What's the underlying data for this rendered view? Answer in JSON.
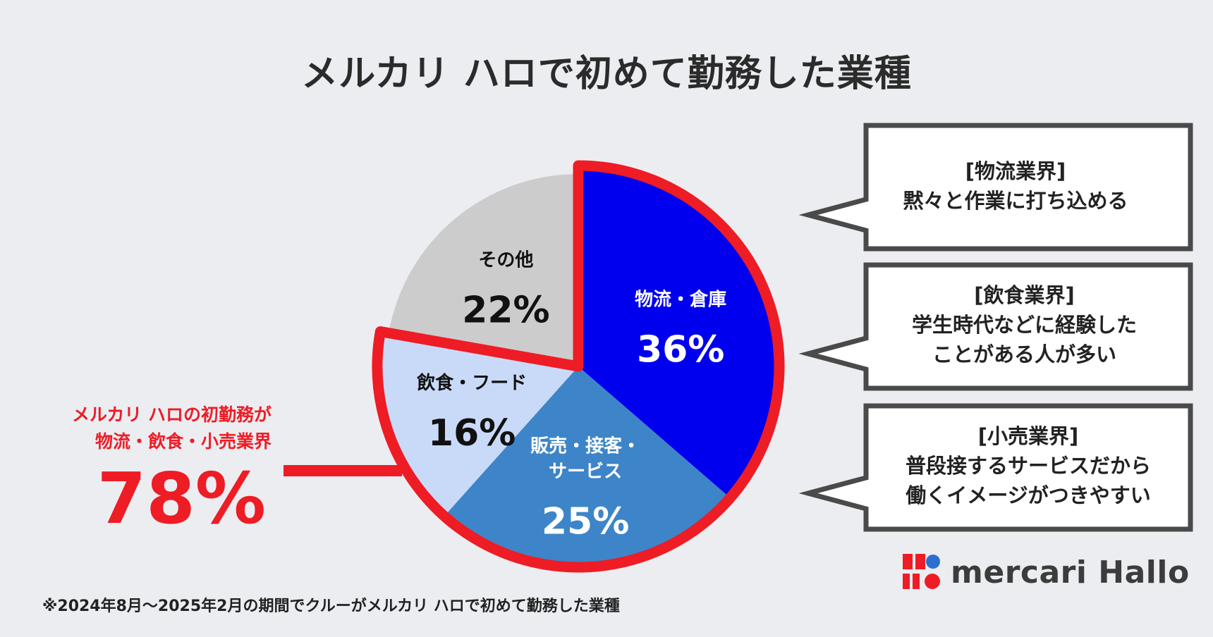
{
  "title": "メルカリ ハロで初めて勤務した業種",
  "chart_data": {
    "type": "pie",
    "title": "メルカリ ハロで初めて勤務した業種",
    "start_angle_deg": 0,
    "direction": "clockwise",
    "slices": [
      {
        "label": "物流・倉庫",
        "label_lines": [
          "物流・倉庫"
        ],
        "value": 36,
        "display": "36%",
        "color": "#0000ee",
        "text_color": "#ffffff",
        "highlighted": true
      },
      {
        "label": "販売・接客・サービス",
        "label_lines": [
          "販売・接客・",
          "サービス"
        ],
        "value": 25,
        "display": "25%",
        "color": "#3d85c8",
        "text_color": "#ffffff",
        "highlighted": true
      },
      {
        "label": "飲食・フード",
        "label_lines": [
          "飲食・フード"
        ],
        "value": 16,
        "display": "16%",
        "color": "#c9daf8",
        "text_color": "#111111",
        "highlighted": true
      },
      {
        "label": "その他",
        "label_lines": [
          "その他"
        ],
        "value": 22,
        "display": "22%",
        "color": "#cccccc",
        "text_color": "#111111",
        "highlighted": false
      }
    ],
    "highlight_color": "#ee1c25"
  },
  "callout": {
    "lines": [
      "メルカリ ハロの初勤務が",
      "物流・飲食・小売業界"
    ],
    "value": "78%"
  },
  "bubbles": [
    {
      "heading": "[物流業界]",
      "lines": [
        "黙々と作業に打ち込める"
      ]
    },
    {
      "heading": "[飲食業界]",
      "lines": [
        "学生時代などに経験した",
        "ことがある人が多い"
      ]
    },
    {
      "heading": "[小売業界]",
      "lines": [
        "普段接するサービスだから",
        "働くイメージがつきやすい"
      ]
    }
  ],
  "footnote": "※2024年8月〜2025年2月の期間でクルーがメルカリ ハロで初めて勤務した業種",
  "logo": {
    "text": "mercari Hallo",
    "colors": [
      "#ee1c25",
      "#2d6fd1"
    ]
  }
}
